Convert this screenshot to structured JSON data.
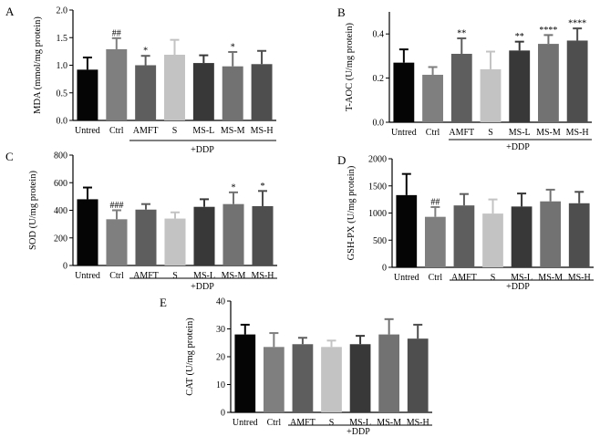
{
  "chart_data": [
    {
      "type": "bar",
      "panel": "A",
      "ylabel": "MDA (mmol/mg protein)",
      "ylim": [
        0,
        2.0
      ],
      "yticks": [
        "0.0",
        "0.5",
        "1.0",
        "1.5",
        "2.0"
      ],
      "categories": [
        "Untred",
        "Ctrl",
        "AMFT",
        "S",
        "MS-L",
        "MS-M",
        "MS-H"
      ],
      "values": [
        0.92,
        1.29,
        1.0,
        1.19,
        1.04,
        0.98,
        1.02
      ],
      "errors": [
        0.22,
        0.2,
        0.17,
        0.27,
        0.14,
        0.26,
        0.24
      ],
      "significance": [
        "",
        "##",
        "*",
        "",
        "",
        "*",
        ""
      ],
      "group_label": "+DDP",
      "colors": [
        "#050505",
        "#7f7f7f",
        "#5e5e5e",
        "#c3c3c3",
        "#383838",
        "#727272",
        "#4e4e4e"
      ]
    },
    {
      "type": "bar",
      "panel": "B",
      "ylabel": "T-AOC (U/mg protein)",
      "ylim": [
        0,
        0.5
      ],
      "yticks": [
        "0.0",
        "0.2",
        "0.4"
      ],
      "categories": [
        "Untred",
        "Ctrl",
        "AMFT",
        "S",
        "MS-L",
        "MS-M",
        "MS-H"
      ],
      "values": [
        0.27,
        0.215,
        0.31,
        0.24,
        0.325,
        0.355,
        0.37
      ],
      "errors": [
        0.06,
        0.035,
        0.07,
        0.08,
        0.04,
        0.04,
        0.055
      ],
      "significance": [
        "",
        "",
        "**",
        "",
        "**",
        "****",
        "****"
      ],
      "group_label": "+DDP",
      "colors": [
        "#050505",
        "#7f7f7f",
        "#5e5e5e",
        "#c3c3c3",
        "#383838",
        "#727272",
        "#4e4e4e"
      ]
    },
    {
      "type": "bar",
      "panel": "C",
      "ylabel": "SOD (U/mg protein)",
      "ylim": [
        0,
        800
      ],
      "yticks": [
        "0",
        "200",
        "400",
        "600",
        "800"
      ],
      "categories": [
        "Untred",
        "Ctrl",
        "AMFT",
        "S",
        "MS-L",
        "MS-M",
        "MS-H"
      ],
      "values": [
        480,
        335,
        405,
        340,
        425,
        445,
        430
      ],
      "errors": [
        85,
        65,
        40,
        45,
        55,
        85,
        110
      ],
      "significance": [
        "",
        "###",
        "",
        "",
        "",
        "*",
        "*"
      ],
      "group_label": "+DDP",
      "colors": [
        "#050505",
        "#7f7f7f",
        "#5e5e5e",
        "#c3c3c3",
        "#383838",
        "#727272",
        "#4e4e4e"
      ]
    },
    {
      "type": "bar",
      "panel": "D",
      "ylabel": "GSH-PX (U/mg protein)",
      "ylim": [
        0,
        2000
      ],
      "yticks": [
        "0",
        "500",
        "1000",
        "1500",
        "2000"
      ],
      "categories": [
        "Untred",
        "Ctrl",
        "AMFT",
        "S",
        "MS-L",
        "MS-M",
        "MS-H"
      ],
      "values": [
        1330,
        930,
        1140,
        990,
        1120,
        1215,
        1180
      ],
      "errors": [
        390,
        180,
        210,
        260,
        240,
        215,
        210
      ],
      "significance": [
        "",
        "##",
        "",
        "",
        "",
        "",
        ""
      ],
      "group_label": "+DDP",
      "colors": [
        "#050505",
        "#7f7f7f",
        "#5e5e5e",
        "#c3c3c3",
        "#383838",
        "#727272",
        "#4e4e4e"
      ]
    },
    {
      "type": "bar",
      "panel": "E",
      "ylabel": "CAT (U/mg protein)",
      "ylim": [
        0,
        40
      ],
      "yticks": [
        "0",
        "10",
        "20",
        "30",
        "40"
      ],
      "categories": [
        "Untred",
        "Ctrl",
        "AMFT",
        "S",
        "MS-L",
        "MS-M",
        "MS-H"
      ],
      "values": [
        28,
        23.5,
        24.5,
        23.5,
        24.5,
        28,
        26.5
      ],
      "errors": [
        3.5,
        5,
        2.3,
        2.3,
        3,
        5.5,
        5
      ],
      "significance": [
        "",
        "",
        "",
        "",
        "",
        "",
        ""
      ],
      "group_label": "+DDP",
      "colors": [
        "#050505",
        "#7f7f7f",
        "#5e5e5e",
        "#c3c3c3",
        "#383838",
        "#727272",
        "#4e4e4e"
      ]
    }
  ]
}
